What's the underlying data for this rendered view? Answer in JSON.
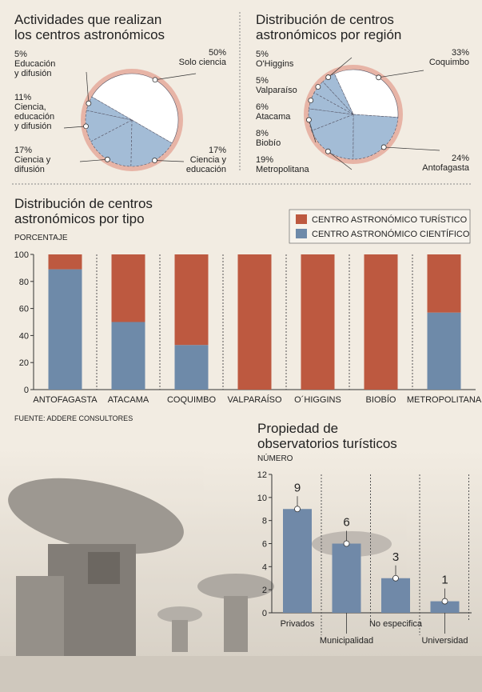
{
  "chart_data": [
    {
      "type": "pie",
      "title": "Actividades que realizan\nlos centros astronómicos",
      "categories": [
        "Solo ciencia",
        "Ciencia y\neducación",
        "Ciencia y\ndifusión",
        "Ciencia,\neducación\ny difusión",
        "Educación\ny difusión"
      ],
      "values": [
        50,
        17,
        17,
        11,
        5
      ],
      "value_labels": [
        "50%",
        "17%",
        "17%",
        "11%",
        "5%"
      ],
      "colors": [
        "#ffffff",
        "#a3bcd6",
        "#a3bcd6",
        "#a3bcd6",
        "#a3bcd6"
      ]
    },
    {
      "type": "pie",
      "title": "Distribución de centros\nastronómicos por región",
      "categories": [
        "Coquimbo",
        "Antofagasta",
        "Metropolitana",
        "Biobío",
        "Atacama",
        "Valparaíso",
        "O'Higgins"
      ],
      "values": [
        33,
        24,
        19,
        8,
        6,
        5,
        5
      ],
      "value_labels": [
        "33%",
        "24%",
        "19%",
        "8%",
        "6%",
        "5%",
        "5%"
      ],
      "colors": [
        "#ffffff",
        "#a3bcd6",
        "#a3bcd6",
        "#a3bcd6",
        "#a3bcd6",
        "#a3bcd6",
        "#a3bcd6"
      ]
    },
    {
      "type": "stacked_bar",
      "title": "Distribución de centros\nastronómicos por tipo",
      "y_label": "PORCENTAJE",
      "categories": [
        "ANTOFAGASTA",
        "ATACAMA",
        "COQUIMBO",
        "VALPARAÍSO",
        "O´HIGGINS",
        "BIOBÍO",
        "METROPOLITANA"
      ],
      "series": [
        {
          "name": "CENTRO ASTRONÓMICO TURÍSTICO",
          "color": "#bd5940",
          "values": [
            11,
            50,
            67,
            100,
            100,
            100,
            43
          ]
        },
        {
          "name": "CENTRO ASTRONÓMICO CIENTÍFICO",
          "color": "#6e8aa9",
          "values": [
            89,
            50,
            33,
            0,
            0,
            0,
            57
          ]
        }
      ],
      "ylim": [
        0,
        100
      ],
      "yticks": [
        0,
        20,
        40,
        60,
        80,
        100
      ],
      "source": "FUENTE: ADDERE CONSULTORES"
    },
    {
      "type": "bar",
      "title": "Propiedad de\nobservatorios turísticos",
      "y_label": "NÚMERO",
      "categories": [
        "Privados",
        "Municipalidad",
        "No especifica",
        "Universidad"
      ],
      "values": [
        9,
        6,
        3,
        1
      ],
      "color": "#7089a8",
      "ylim": [
        0,
        12
      ],
      "yticks": [
        0,
        2,
        4,
        6,
        8,
        10,
        12
      ]
    }
  ]
}
